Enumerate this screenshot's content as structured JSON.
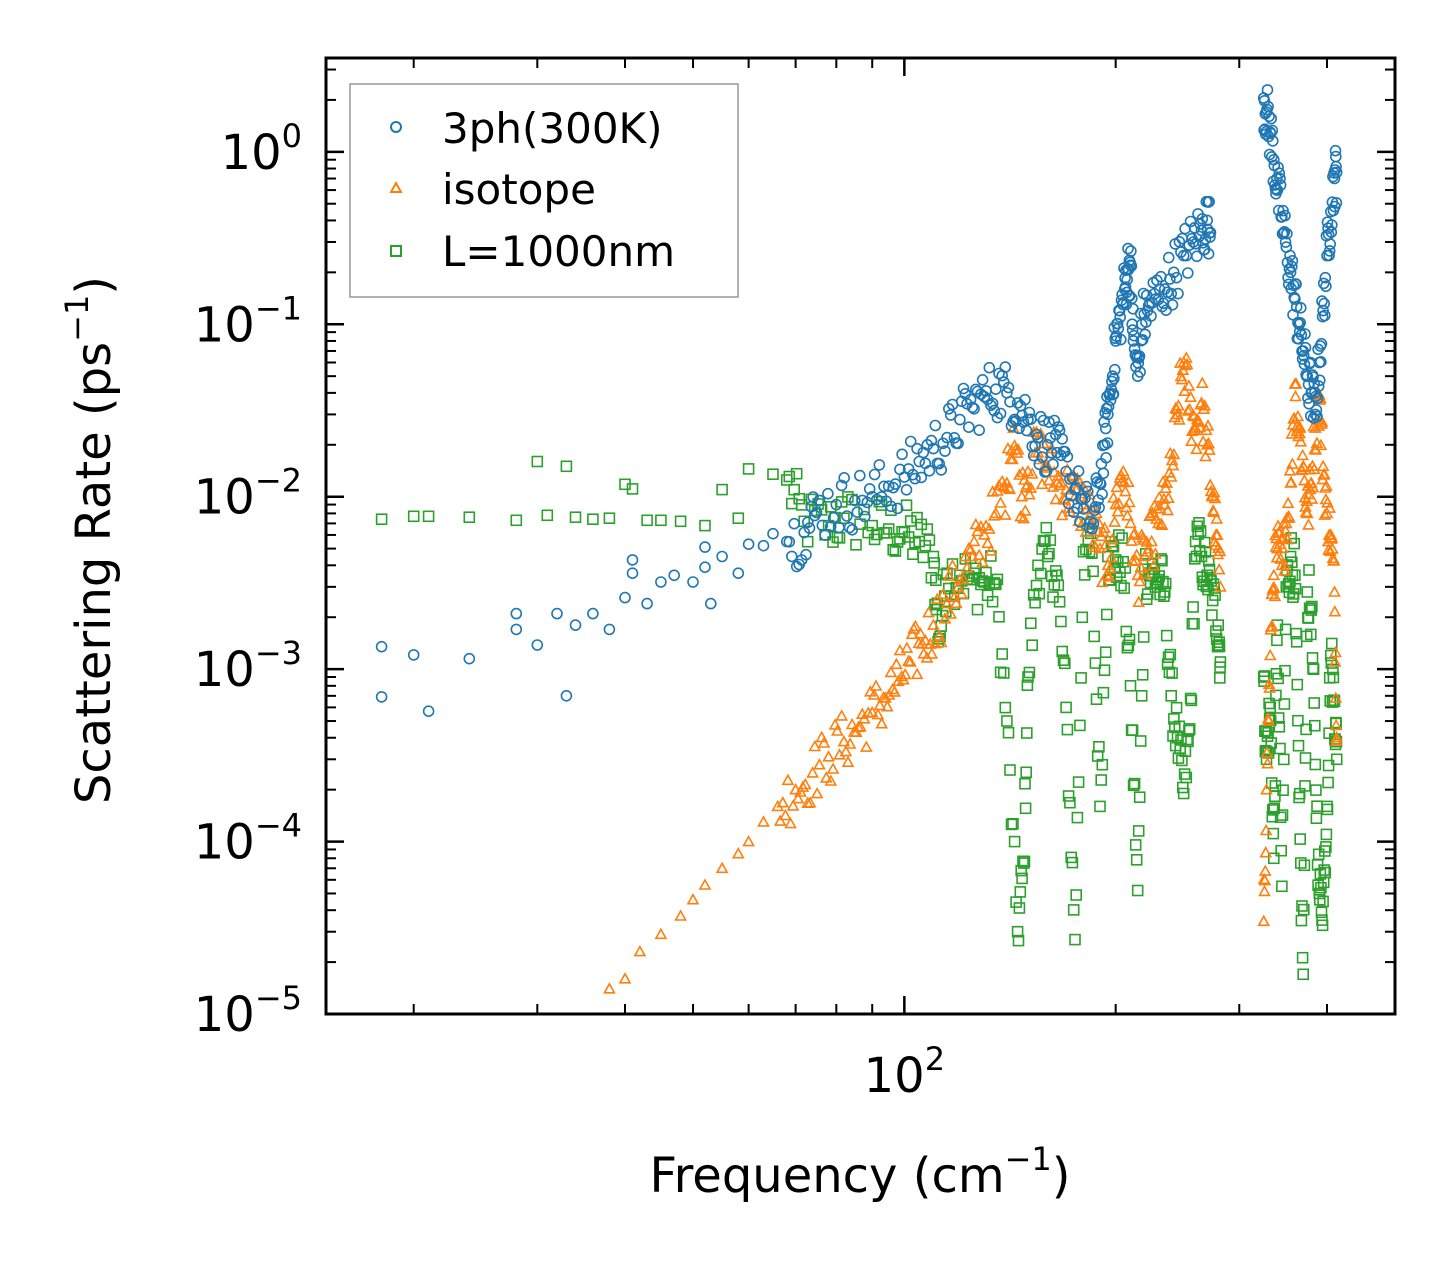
{
  "chart_data": {
    "type": "scatter",
    "title": "",
    "xscale": "log",
    "yscale": "log",
    "xlim": [
      15,
      500
    ],
    "ylim": [
      1e-05,
      3.5
    ],
    "xlabel_base": "Frequency (cm",
    "xlabel_sup": "−1",
    "xlabel_end": ")",
    "ylabel_base": "Scattering Rate (ps",
    "ylabel_sup": "−1",
    "ylabel_end": ")",
    "xticks": [
      {
        "base": "10",
        "exp": "2",
        "value": 100
      }
    ],
    "yticks": [
      {
        "base": "10",
        "exp": "0",
        "value": 1
      },
      {
        "base": "10",
        "exp": "−1",
        "value": 0.1
      },
      {
        "base": "10",
        "exp": "−2",
        "value": 0.01
      },
      {
        "base": "10",
        "exp": "−3",
        "value": 0.001
      },
      {
        "base": "10",
        "exp": "−4",
        "value": 0.0001
      },
      {
        "base": "10",
        "exp": "−5",
        "value": 1e-05
      }
    ],
    "legend_position": "top-left",
    "series": [
      {
        "name": "3ph(300K)",
        "marker": "circle",
        "color": "#1f77b4",
        "anchors": [
          [
            18,
            0.00135
          ],
          [
            18,
            0.00069
          ],
          [
            20,
            0.00121
          ],
          [
            21,
            0.00057
          ],
          [
            24,
            0.00115
          ],
          [
            28,
            0.0021
          ],
          [
            28,
            0.0017
          ],
          [
            30,
            0.00138
          ],
          [
            32,
            0.0021
          ],
          [
            33,
            0.0007
          ],
          [
            34,
            0.0018
          ],
          [
            36,
            0.0021
          ],
          [
            38,
            0.0017
          ],
          [
            40,
            0.0026
          ],
          [
            41,
            0.0036
          ],
          [
            41,
            0.0043
          ],
          [
            43,
            0.0024
          ],
          [
            45,
            0.0032
          ],
          [
            47,
            0.0035
          ],
          [
            50,
            0.0032
          ],
          [
            52,
            0.0039
          ],
          [
            52,
            0.0051
          ],
          [
            53,
            0.0024
          ],
          [
            55,
            0.0045
          ],
          [
            58,
            0.0036
          ],
          [
            60,
            0.0053
          ],
          [
            63,
            0.0052
          ],
          [
            65,
            0.0061
          ],
          [
            68,
            0.0055
          ],
          [
            72,
            0.0062
          ],
          [
            75,
            0.0081
          ],
          [
            80,
            0.009
          ],
          [
            85,
            0.0095
          ],
          [
            90,
            0.01
          ],
          [
            95,
            0.0115
          ],
          [
            100,
            0.013
          ],
          [
            105,
            0.016
          ],
          [
            110,
            0.019
          ],
          [
            115,
            0.022
          ],
          [
            120,
            0.028
          ],
          [
            125,
            0.033
          ],
          [
            130,
            0.038
          ],
          [
            135,
            0.042
          ],
          [
            140,
            0.04
          ],
          [
            145,
            0.035
          ],
          [
            150,
            0.028
          ],
          [
            155,
            0.022
          ],
          [
            160,
            0.02
          ],
          [
            165,
            0.018
          ],
          [
            170,
            0.014
          ],
          [
            175,
            0.011
          ],
          [
            180,
            0.0085
          ],
          [
            186,
            0.007
          ],
          [
            190,
            0.012
          ],
          [
            193,
            0.02
          ],
          [
            195,
            0.03
          ],
          [
            198,
            0.05
          ],
          [
            200,
            0.08
          ],
          [
            203,
            0.11
          ],
          [
            206,
            0.16
          ],
          [
            208,
            0.21
          ],
          [
            210,
            0.22
          ],
          [
            212,
            0.08
          ],
          [
            215,
            0.05
          ],
          [
            218,
            0.1
          ],
          [
            222,
            0.12
          ],
          [
            228,
            0.14
          ],
          [
            235,
            0.16
          ],
          [
            242,
            0.2
          ],
          [
            250,
            0.25
          ],
          [
            258,
            0.3
          ],
          [
            265,
            0.35
          ],
          [
            270,
            0.4
          ],
          [
            273,
            0.34
          ],
          [
            325,
            2.05
          ],
          [
            328,
            1.7
          ],
          [
            332,
            1.3
          ],
          [
            336,
            0.9
          ],
          [
            340,
            0.6
          ],
          [
            345,
            0.42
          ],
          [
            350,
            0.28
          ],
          [
            355,
            0.2
          ],
          [
            360,
            0.14
          ],
          [
            365,
            0.1
          ],
          [
            370,
            0.07
          ],
          [
            375,
            0.05
          ],
          [
            380,
            0.04
          ],
          [
            385,
            0.03
          ],
          [
            390,
            0.06
          ],
          [
            395,
            0.12
          ],
          [
            400,
            0.25
          ],
          [
            405,
            0.45
          ],
          [
            410,
            0.7
          ],
          [
            413,
            0.76
          ]
        ]
      },
      {
        "name": "isotope",
        "marker": "triangle",
        "color": "#ff7f0e",
        "anchors": [
          [
            38,
            1.4e-05
          ],
          [
            40,
            1.6e-05
          ],
          [
            42,
            2.3e-05
          ],
          [
            45,
            2.9e-05
          ],
          [
            48,
            3.7e-05
          ],
          [
            50,
            4.6e-05
          ],
          [
            52,
            5.6e-05
          ],
          [
            55,
            7e-05
          ],
          [
            58,
            8.5e-05
          ],
          [
            60,
            0.0001
          ],
          [
            63,
            0.00013
          ],
          [
            66,
            0.00016
          ],
          [
            70,
            0.0002
          ],
          [
            74,
            0.00025
          ],
          [
            78,
            0.00031
          ],
          [
            82,
            0.00038
          ],
          [
            86,
            0.00046
          ],
          [
            90,
            0.00056
          ],
          [
            94,
            0.00068
          ],
          [
            98,
            0.00085
          ],
          [
            102,
            0.0011
          ],
          [
            106,
            0.0014
          ],
          [
            110,
            0.0018
          ],
          [
            115,
            0.0024
          ],
          [
            120,
            0.0033
          ],
          [
            125,
            0.0045
          ],
          [
            130,
            0.006
          ],
          [
            135,
            0.008
          ],
          [
            140,
            0.012
          ],
          [
            143,
            0.025
          ],
          [
            147,
            0.01
          ],
          [
            150,
            0.014
          ],
          [
            155,
            0.018
          ],
          [
            160,
            0.015
          ],
          [
            165,
            0.012
          ],
          [
            170,
            0.011
          ],
          [
            175,
            0.01
          ],
          [
            180,
            0.009
          ],
          [
            185,
            0.007
          ],
          [
            190,
            0.005
          ],
          [
            195,
            0.004
          ],
          [
            200,
            0.009
          ],
          [
            205,
            0.014
          ],
          [
            210,
            0.007
          ],
          [
            215,
            0.0035
          ],
          [
            220,
            0.0045
          ],
          [
            225,
            0.0055
          ],
          [
            230,
            0.007
          ],
          [
            235,
            0.009
          ],
          [
            240,
            0.013
          ],
          [
            245,
            0.03
          ],
          [
            250,
            0.06
          ],
          [
            255,
            0.032
          ],
          [
            260,
            0.025
          ],
          [
            265,
            0.035
          ],
          [
            270,
            0.02
          ],
          [
            275,
            0.01
          ],
          [
            278,
            0.006
          ],
          [
            282,
            0.003
          ],
          [
            325,
            3.45e-05
          ],
          [
            328,
            0.0002
          ],
          [
            332,
            0.0012
          ],
          [
            336,
            0.0035
          ],
          [
            340,
            0.005
          ],
          [
            345,
            0.004
          ],
          [
            350,
            0.007
          ],
          [
            355,
            0.012
          ],
          [
            360,
            0.045
          ],
          [
            365,
            0.025
          ],
          [
            370,
            0.015
          ],
          [
            375,
            0.008
          ],
          [
            380,
            0.012
          ],
          [
            385,
            0.025
          ],
          [
            390,
            0.039
          ],
          [
            395,
            0.015
          ],
          [
            400,
            0.008
          ],
          [
            405,
            0.006
          ],
          [
            410,
            0.0028
          ],
          [
            413,
            0.0004
          ]
        ]
      },
      {
        "name": "L=1000nm",
        "marker": "square",
        "color": "#2ca02c",
        "anchors": [
          [
            18,
            0.0074
          ],
          [
            20,
            0.0077
          ],
          [
            21,
            0.0077
          ],
          [
            24,
            0.0076
          ],
          [
            28,
            0.0073
          ],
          [
            30,
            0.016
          ],
          [
            31,
            0.0078
          ],
          [
            33,
            0.015
          ],
          [
            34,
            0.0076
          ],
          [
            36,
            0.0074
          ],
          [
            38,
            0.0075
          ],
          [
            40,
            0.0118
          ],
          [
            41,
            0.0111
          ],
          [
            43,
            0.0073
          ],
          [
            45,
            0.0073
          ],
          [
            48,
            0.0072
          ],
          [
            52,
            0.0068
          ],
          [
            55,
            0.011
          ],
          [
            58,
            0.0075
          ],
          [
            60,
            0.0145
          ],
          [
            65,
            0.0135
          ],
          [
            68,
            0.0125
          ],
          [
            72,
            0.0072
          ],
          [
            78,
            0.0068
          ],
          [
            82,
            0.0075
          ],
          [
            90,
            0.0068
          ],
          [
            95,
            0.0065
          ],
          [
            100,
            0.0062
          ],
          [
            105,
            0.0055
          ],
          [
            110,
            0.0045
          ],
          [
            112,
            0.0015
          ],
          [
            115,
            0.0036
          ],
          [
            120,
            0.0035
          ],
          [
            125,
            0.0033
          ],
          [
            130,
            0.0032
          ],
          [
            135,
            0.0031
          ],
          [
            140,
            0.0005
          ],
          [
            145,
            3e-05
          ],
          [
            148,
            7.5e-05
          ],
          [
            150,
            0.0009
          ],
          [
            155,
            0.004
          ],
          [
            160,
            0.0045
          ],
          [
            165,
            0.0035
          ],
          [
            170,
            0.0006
          ],
          [
            175,
            2.7e-05
          ],
          [
            180,
            0.0048
          ],
          [
            185,
            0.0047
          ],
          [
            190,
            0.00016
          ],
          [
            195,
            0.0045
          ],
          [
            200,
            0.0043
          ],
          [
            205,
            0.0042
          ],
          [
            210,
            0.0008
          ],
          [
            215,
            5.2e-05
          ],
          [
            220,
            0.0038
          ],
          [
            225,
            0.0035
          ],
          [
            230,
            0.0033
          ],
          [
            235,
            0.0028
          ],
          [
            240,
            0.0007
          ],
          [
            245,
            0.0004
          ],
          [
            250,
            0.00019
          ],
          [
            255,
            0.00045
          ],
          [
            260,
            0.0055
          ],
          [
            265,
            0.0045
          ],
          [
            270,
            0.0035
          ],
          [
            275,
            0.0025
          ],
          [
            280,
            0.0018
          ],
          [
            282,
            0.0011
          ],
          [
            325,
            0.0009
          ],
          [
            328,
            0.0003
          ],
          [
            332,
            0.0006
          ],
          [
            336,
            8e-05
          ],
          [
            340,
            0.0018
          ],
          [
            345,
            5.5e-05
          ],
          [
            350,
            0.003
          ],
          [
            355,
            0.0045
          ],
          [
            360,
            0.0035
          ],
          [
            365,
            0.00018
          ],
          [
            370,
            1.7e-05
          ],
          [
            375,
            0.0028
          ],
          [
            380,
            0.0022
          ],
          [
            385,
            0.00028
          ],
          [
            390,
            5e-05
          ],
          [
            395,
            4.5e-05
          ],
          [
            400,
            0.00016
          ],
          [
            405,
            0.0012
          ],
          [
            410,
            0.00065
          ],
          [
            413,
            0.0003
          ]
        ]
      }
    ]
  }
}
